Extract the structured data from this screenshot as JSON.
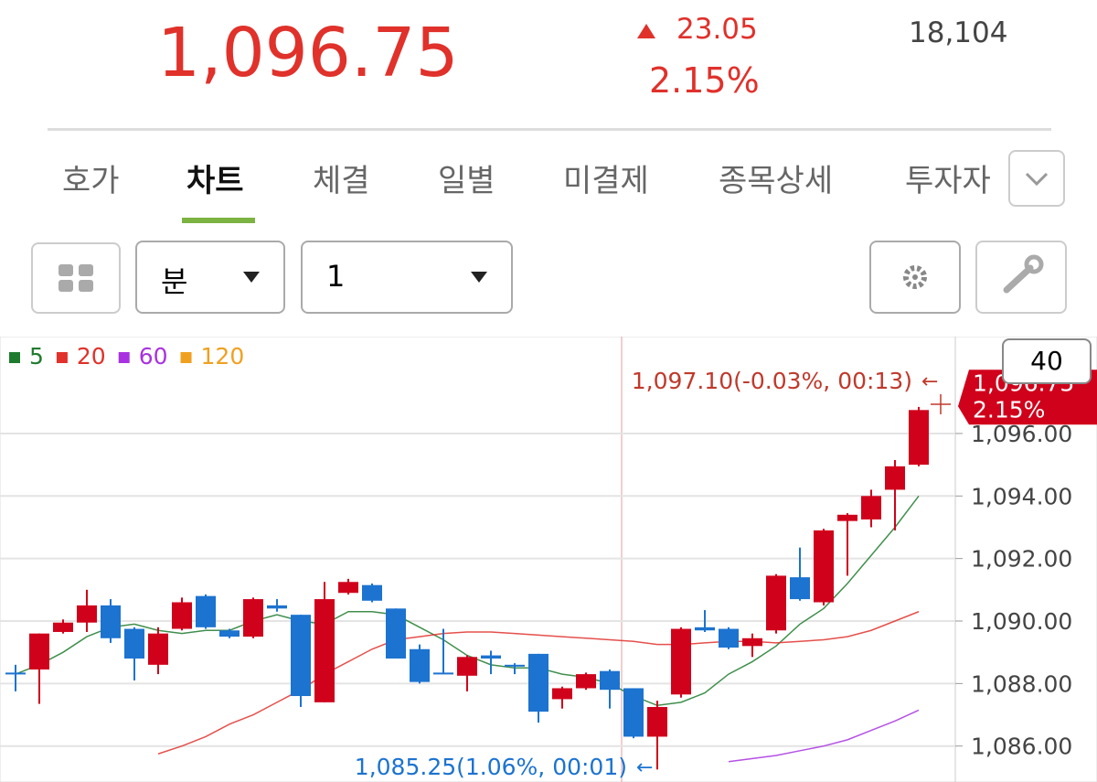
{
  "header": {
    "price": "1,096.75",
    "change": "23.05",
    "change_pct": "2.15%",
    "volume": "18,104"
  },
  "tabs": [
    "호가",
    "차트",
    "체결",
    "일별",
    "미결제",
    "종목상세",
    "투자자"
  ],
  "toolbar": {
    "period": "분",
    "interval": "1",
    "count": "40"
  },
  "chart_data": {
    "type": "candlestick",
    "legend": [
      {
        "name": "5",
        "color": "#1e7b2e"
      },
      {
        "name": "20",
        "color": "#e0312b"
      },
      {
        "name": "60",
        "color": "#a832e0"
      },
      {
        "name": "120",
        "color": "#f0a020"
      }
    ],
    "open": [
      1088.35,
      1088.45,
      1089.65,
      1089.95,
      1090.5,
      1089.75,
      1088.6,
      1089.75,
      1090.8,
      1089.7,
      1089.5,
      1090.5,
      1090.2,
      1087.4,
      1090.9,
      1091.15,
      1090.4,
      1089.1,
      1088.35,
      1088.25,
      1088.9,
      1088.6,
      1088.95,
      1087.5,
      1087.85,
      1088.4,
      1087.85,
      1086.3,
      1087.65,
      1089.8,
      1089.75,
      1089.2,
      1089.7,
      1091.4,
      1090.6,
      1093.2,
      1093.25,
      1094.2,
      1095.0
    ],
    "high": [
      1088.6,
      1089.6,
      1090.05,
      1091.0,
      1090.7,
      1089.8,
      1089.8,
      1090.75,
      1090.85,
      1089.75,
      1090.75,
      1090.7,
      1090.2,
      1091.25,
      1091.35,
      1091.2,
      1090.4,
      1089.25,
      1089.75,
      1088.9,
      1089.05,
      1088.65,
      1088.95,
      1087.9,
      1088.35,
      1088.45,
      1087.85,
      1087.45,
      1089.8,
      1090.35,
      1089.8,
      1089.6,
      1091.5,
      1092.35,
      1092.95,
      1093.45,
      1094.2,
      1095.15,
      1096.85
    ],
    "low": [
      1087.75,
      1087.35,
      1089.6,
      1089.65,
      1089.3,
      1088.1,
      1088.3,
      1089.7,
      1089.75,
      1089.45,
      1089.45,
      1090.3,
      1087.25,
      1087.4,
      1090.85,
      1090.6,
      1088.8,
      1088.0,
      1088.3,
      1087.75,
      1088.3,
      1088.3,
      1086.75,
      1087.2,
      1087.8,
      1087.2,
      1086.25,
      1085.25,
      1087.55,
      1089.65,
      1089.1,
      1088.85,
      1089.6,
      1090.65,
      1090.5,
      1091.45,
      1093.0,
      1092.9,
      1094.95
    ],
    "close": [
      1088.3,
      1089.6,
      1089.95,
      1090.5,
      1089.45,
      1088.8,
      1089.6,
      1090.6,
      1089.8,
      1089.5,
      1090.7,
      1090.4,
      1087.6,
      1090.7,
      1091.25,
      1090.65,
      1088.8,
      1088.05,
      1088.3,
      1088.85,
      1088.8,
      1088.55,
      1087.1,
      1087.85,
      1088.3,
      1087.8,
      1086.3,
      1087.25,
      1089.75,
      1089.7,
      1089.15,
      1089.45,
      1091.45,
      1090.7,
      1092.9,
      1093.4,
      1094.0,
      1094.95,
      1096.75
    ],
    "ma": [
      {
        "name": "5",
        "color": "#1e7b2e",
        "values": [
          1088.3,
          1088.6,
          1089.0,
          1089.5,
          1089.8,
          1089.9,
          1089.7,
          1089.6,
          1089.7,
          1089.7,
          1090.0,
          1090.2,
          1090.0,
          1089.9,
          1090.3,
          1090.3,
          1090.2,
          1089.8,
          1089.4,
          1088.9,
          1088.6,
          1088.5,
          1088.5,
          1088.3,
          1088.2,
          1088.0,
          1087.6,
          1087.3,
          1087.4,
          1087.7,
          1088.3,
          1088.7,
          1089.2,
          1089.9,
          1090.4,
          1091.2,
          1092.1,
          1093.0,
          1094.0
        ]
      },
      {
        "name": "20",
        "color": "#e0312b",
        "values": [
          null,
          null,
          null,
          null,
          null,
          null,
          1085.75,
          1086.0,
          1086.3,
          1086.7,
          1087.0,
          1087.4,
          1087.8,
          1088.3,
          1088.7,
          1089.1,
          1089.4,
          1089.5,
          1089.6,
          1089.65,
          1089.65,
          1089.6,
          1089.55,
          1089.5,
          1089.45,
          1089.4,
          1089.35,
          1089.25,
          1089.25,
          1089.3,
          1089.35,
          1089.35,
          1089.3,
          1089.35,
          1089.4,
          1089.5,
          1089.7,
          1090.0,
          1090.3
        ]
      },
      {
        "name": "60",
        "color": "#a832e0",
        "values": [
          null,
          null,
          null,
          null,
          null,
          null,
          null,
          null,
          null,
          null,
          null,
          null,
          null,
          null,
          null,
          null,
          null,
          null,
          null,
          null,
          null,
          null,
          null,
          null,
          null,
          null,
          null,
          null,
          null,
          null,
          1085.5,
          1085.6,
          1085.7,
          1085.85,
          1086.0,
          1086.2,
          1086.5,
          1086.8,
          1087.15
        ]
      }
    ],
    "up_color": "#d0021b",
    "down_color": "#1c73d0",
    "ylim": [
      1084.85,
      1099.1
    ],
    "yticks": [
      {
        "value": 1086,
        "label": "1,086.00"
      },
      {
        "value": 1088,
        "label": "1,088.00"
      },
      {
        "value": 1090,
        "label": "1,090.00"
      },
      {
        "value": 1092,
        "label": "1,092.00"
      },
      {
        "value": 1094,
        "label": "1,094.00"
      },
      {
        "value": 1096,
        "label": "1,096.00"
      }
    ],
    "grid": true,
    "annotations": {
      "high": "1,097.10(-0.03%, 00:13)",
      "low": "1,085.25(1.06%, 00:01)",
      "price_tag": "1,096.75",
      "price_tag_pct": "2.15%"
    }
  }
}
